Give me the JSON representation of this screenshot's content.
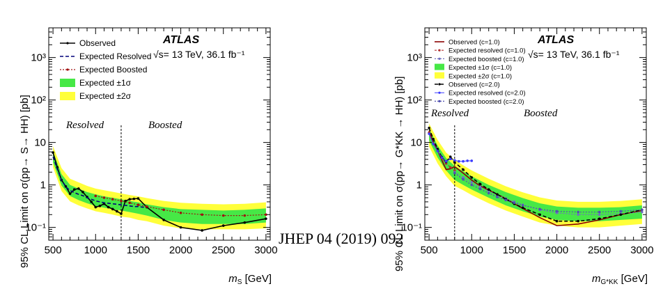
{
  "caption": "JHEP 04 (2019) 092",
  "colors": {
    "band1": "#46e846",
    "band2": "#ffff3a",
    "observed": "#000000",
    "expected": "#00007a",
    "boosted": "#a01010",
    "observed_c1": "#8b0000",
    "expected_c2": "#3a3aff"
  },
  "chart_data": [
    {
      "type": "line",
      "ylabel": "95% CL Limit on σ(pp→ S→ HH) [pb]",
      "xlabel": "m_S [GeV]",
      "xlim": [
        450,
        3050
      ],
      "ylim": [
        0.05,
        5000
      ],
      "y_scale": "log",
      "xticks": [
        "500",
        "1000",
        "1500",
        "2000",
        "2500",
        "3000"
      ],
      "yticks": [
        "10⁻¹",
        "1",
        "10",
        "10²",
        "10³"
      ],
      "atlas_label": "ATLAS",
      "energy_label": "√s= 13 TeV, 36.1 fb⁻¹",
      "regions": [
        "Resolved",
        "Boosted"
      ],
      "legend": [
        "Observed",
        "Expected Resolved",
        "Expected Boosted",
        "Expected ±1σ",
        "Expected ±2σ"
      ],
      "legend_placement": "top-left",
      "divider_x": 1300,
      "series": [
        {
          "name": "Observed",
          "x": [
            500,
            550,
            600,
            650,
            700,
            750,
            800,
            850,
            900,
            950,
            1000,
            1050,
            1100,
            1150,
            1200,
            1250,
            1300,
            1350,
            1400,
            1450,
            1500,
            1600,
            1800,
            2000,
            2250,
            2500,
            2750,
            3000
          ],
          "y": [
            5.8,
            2.6,
            1.3,
            0.92,
            0.62,
            0.78,
            0.82,
            0.68,
            0.52,
            0.4,
            0.3,
            0.32,
            0.36,
            0.3,
            0.27,
            0.24,
            0.21,
            0.42,
            0.46,
            0.47,
            0.48,
            0.3,
            0.15,
            0.1,
            0.085,
            0.11,
            0.13,
            0.16
          ]
        },
        {
          "name": "Expected Resolved",
          "x": [
            500,
            550,
            600,
            650,
            700,
            750,
            800,
            850,
            900,
            950,
            1000,
            1050,
            1100,
            1150,
            1200,
            1250,
            1300,
            1350,
            1400,
            1450,
            1500,
            1550,
            1600
          ],
          "y": [
            4.6,
            2.4,
            1.3,
            0.9,
            0.74,
            0.66,
            0.6,
            0.56,
            0.5,
            0.46,
            0.42,
            0.4,
            0.38,
            0.37,
            0.36,
            0.35,
            0.34,
            0.33,
            0.32,
            0.31,
            0.31,
            0.3,
            0.3
          ]
        },
        {
          "name": "Expected Boosted",
          "x": [
            1000,
            1100,
            1200,
            1300,
            1400,
            1500,
            1600,
            1800,
            2000,
            2250,
            2500,
            2750,
            3000
          ],
          "y": [
            0.55,
            0.5,
            0.46,
            0.42,
            0.38,
            0.34,
            0.31,
            0.26,
            0.22,
            0.2,
            0.19,
            0.19,
            0.2
          ]
        },
        {
          "name": "Expected ±1σ",
          "x": [
            500,
            600,
            700,
            800,
            900,
            1000,
            1100,
            1200,
            1300,
            1400,
            1500,
            1600,
            1800,
            2000,
            2250,
            2500,
            2750,
            3000
          ],
          "low": [
            3.4,
            0.97,
            0.55,
            0.44,
            0.37,
            0.32,
            0.29,
            0.27,
            0.25,
            0.23,
            0.21,
            0.19,
            0.15,
            0.13,
            0.12,
            0.12,
            0.12,
            0.13
          ],
          "high": [
            6.2,
            1.8,
            1.0,
            0.82,
            0.68,
            0.6,
            0.54,
            0.5,
            0.46,
            0.42,
            0.39,
            0.35,
            0.3,
            0.27,
            0.26,
            0.25,
            0.26,
            0.28
          ]
        },
        {
          "name": "Expected ±2σ",
          "x": [
            500,
            600,
            700,
            800,
            900,
            1000,
            1100,
            1200,
            1300,
            1400,
            1500,
            1600,
            1800,
            2000,
            2250,
            2500,
            2750,
            3000
          ],
          "low": [
            2.6,
            0.72,
            0.41,
            0.33,
            0.28,
            0.24,
            0.22,
            0.2,
            0.18,
            0.17,
            0.15,
            0.14,
            0.11,
            0.095,
            0.09,
            0.09,
            0.09,
            0.095
          ],
          "high": [
            8.2,
            2.5,
            1.4,
            1.15,
            0.95,
            0.82,
            0.75,
            0.69,
            0.63,
            0.58,
            0.54,
            0.49,
            0.42,
            0.38,
            0.36,
            0.35,
            0.36,
            0.39
          ]
        }
      ]
    },
    {
      "type": "line",
      "ylabel": "95% CL Limit on σ(pp→ G*KK → HH) [pb]",
      "xlabel": "m_G*KK [GeV]",
      "xlim": [
        450,
        3050
      ],
      "ylim": [
        0.05,
        5000
      ],
      "y_scale": "log",
      "xticks": [
        "500",
        "1000",
        "1500",
        "2000",
        "2500",
        "3000"
      ],
      "yticks": [
        "10⁻¹",
        "1",
        "10",
        "10²",
        "10³"
      ],
      "atlas_label": "ATLAS",
      "energy_label": "√s= 13 TeV, 36.1 fb⁻¹",
      "regions": [
        "Resolved",
        "Boosted"
      ],
      "legend": [
        "Observed (c=1.0)",
        "Expected resolved (c=1.0)",
        "Expected boosted (c=1.0)",
        "Expected ±1σ (c=1.0)",
        "Expected ±2σ (c=1.0)",
        "Observed (c=2.0)",
        "Expected resolved (c=2.0)",
        "Expected boosted (c=2.0)"
      ],
      "legend_placement": "top-left",
      "divider_x": 800,
      "series": [
        {
          "name": "Observed (c=1.0)",
          "x": [
            500,
            550,
            600,
            650,
            700,
            750,
            800,
            900,
            1000,
            1100,
            1200,
            1300,
            1400,
            1500,
            1600,
            1800,
            2000,
            2250,
            2500,
            2750,
            3000
          ],
          "y": [
            19,
            10,
            6.5,
            3.8,
            2.3,
            2.4,
            2.7,
            1.9,
            1.3,
            0.95,
            0.75,
            0.6,
            0.48,
            0.36,
            0.28,
            0.17,
            0.11,
            0.12,
            0.15,
            0.2,
            0.25
          ]
        },
        {
          "name": "Expected resolved (c=1.0)",
          "x": [
            500,
            550,
            600,
            650,
            700,
            750,
            800
          ],
          "y": [
            17,
            9.5,
            6.4,
            4.2,
            3.2,
            2.6,
            2.2
          ]
        },
        {
          "name": "Expected boosted (c=1.0)",
          "x": [
            800,
            900,
            1000,
            1100,
            1200,
            1300,
            1400,
            1500,
            1600,
            1800,
            2000,
            2250,
            2500,
            2750,
            3000
          ],
          "y": [
            2.0,
            1.5,
            1.15,
            0.9,
            0.72,
            0.58,
            0.48,
            0.4,
            0.34,
            0.26,
            0.22,
            0.2,
            0.2,
            0.21,
            0.23
          ]
        },
        {
          "name": "Expected ±1σ (c=1.0)",
          "x": [
            500,
            600,
            700,
            800,
            900,
            1000,
            1200,
            1400,
            1600,
            1800,
            2000,
            2250,
            2500,
            2750,
            3000
          ],
          "low": [
            11,
            4.4,
            2.2,
            1.3,
            1.0,
            0.78,
            0.5,
            0.33,
            0.24,
            0.18,
            0.15,
            0.14,
            0.14,
            0.15,
            0.16
          ],
          "high": [
            21,
            8.5,
            4.3,
            2.8,
            2.1,
            1.6,
            1.0,
            0.68,
            0.49,
            0.37,
            0.31,
            0.29,
            0.29,
            0.3,
            0.33
          ]
        },
        {
          "name": "Expected ±2σ (c=1.0)",
          "x": [
            500,
            600,
            700,
            800,
            900,
            1000,
            1200,
            1400,
            1600,
            1800,
            2000,
            2250,
            2500,
            2750,
            3000
          ],
          "low": [
            8,
            3.2,
            1.6,
            0.95,
            0.75,
            0.58,
            0.37,
            0.25,
            0.18,
            0.13,
            0.11,
            0.1,
            0.1,
            0.11,
            0.12
          ],
          "high": [
            28,
            11.5,
            5.8,
            3.9,
            2.9,
            2.2,
            1.4,
            0.93,
            0.67,
            0.51,
            0.43,
            0.4,
            0.4,
            0.42,
            0.46
          ]
        },
        {
          "name": "Observed (c=2.0)",
          "x": [
            500,
            550,
            600,
            650,
            700,
            750,
            800,
            900,
            1000,
            1100,
            1200,
            1300,
            1400,
            1500,
            1600,
            1800,
            2000,
            2250,
            2500,
            2750,
            3000
          ],
          "y": [
            22,
            12,
            7,
            4.5,
            3.5,
            4.6,
            3.4,
            2.3,
            1.5,
            1.05,
            0.78,
            0.6,
            0.46,
            0.36,
            0.29,
            0.2,
            0.14,
            0.14,
            0.16,
            0.2,
            0.26
          ]
        },
        {
          "name": "Expected resolved (c=2.0)",
          "x": [
            500,
            550,
            600,
            650,
            700,
            750,
            800,
            850,
            900,
            950,
            1000
          ],
          "y": [
            16,
            9.2,
            6.3,
            4.4,
            3.6,
            4.1,
            3.8,
            3.6,
            3.6,
            3.7,
            3.7
          ]
        },
        {
          "name": "Expected boosted (c=2.0)",
          "x": [
            800,
            900,
            1000,
            1100,
            1200,
            1300,
            1400,
            1500,
            1600,
            1800,
            2000,
            2250,
            2500,
            2750,
            3000
          ],
          "y": [
            1.9,
            1.35,
            1.0,
            0.8,
            0.64,
            0.52,
            0.44,
            0.38,
            0.33,
            0.27,
            0.24,
            0.23,
            0.23,
            0.24,
            0.26
          ]
        }
      ]
    }
  ]
}
